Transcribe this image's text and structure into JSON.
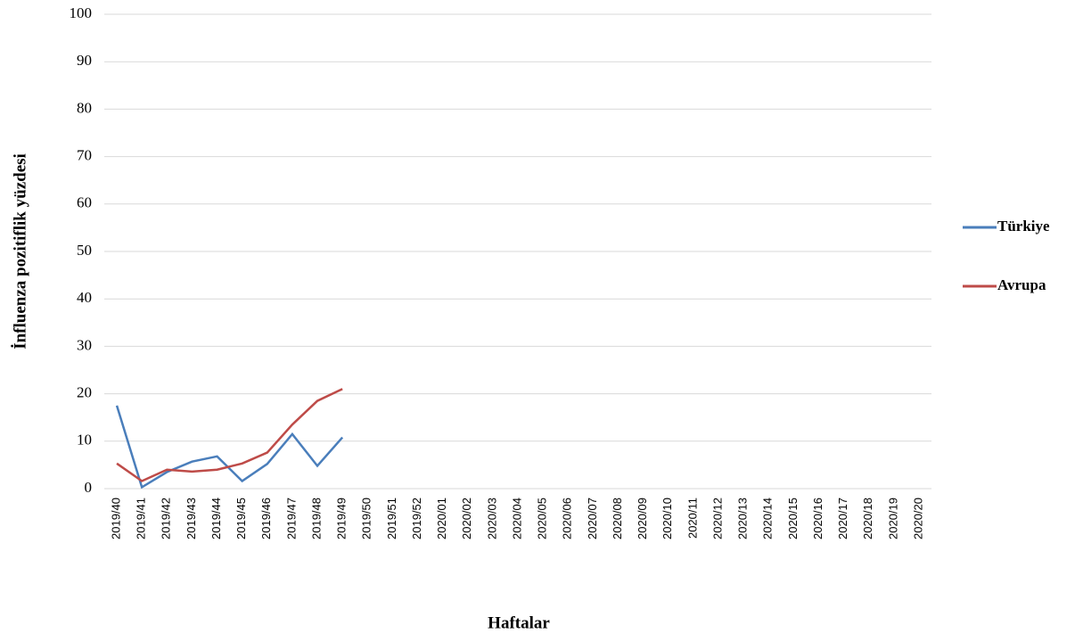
{
  "chart_data": {
    "type": "line",
    "x_label": "Haftalar",
    "y_label": "İnfluenza pozitiflik yüzdesi",
    "categories": [
      "2019/40",
      "2019/41",
      "2019/42",
      "2019/43",
      "2019/44",
      "2019/45",
      "2019/46",
      "2019/47",
      "2019/48",
      "2019/49",
      "2019/50",
      "2019/51",
      "2019/52",
      "2020/01",
      "2020/02",
      "2020/03",
      "2020/04",
      "2020/05",
      "2020/06",
      "2020/07",
      "2020/08",
      "2020/09",
      "2020/10",
      "2020/11",
      "2020/12",
      "2020/13",
      "2020/14",
      "2020/15",
      "2020/16",
      "2020/17",
      "2020/18",
      "2020/19",
      "2020/20"
    ],
    "series": [
      {
        "name": "Türkiye",
        "color": "#4a7ebb",
        "values": [
          17.5,
          0.3,
          3.5,
          5.7,
          6.8,
          1.6,
          5.2,
          11.5,
          4.8,
          10.8,
          null,
          null,
          null,
          null,
          null,
          null,
          null,
          null,
          null,
          null,
          null,
          null,
          null,
          null,
          null,
          null,
          null,
          null,
          null,
          null,
          null,
          null,
          null
        ]
      },
      {
        "name": "Avrupa",
        "color": "#be4b48",
        "values": [
          5.3,
          1.6,
          4.0,
          3.6,
          4.0,
          5.3,
          7.6,
          13.5,
          18.5,
          21.0,
          null,
          null,
          null,
          null,
          null,
          null,
          null,
          null,
          null,
          null,
          null,
          null,
          null,
          null,
          null,
          null,
          null,
          null,
          null,
          null,
          null,
          null,
          null
        ]
      }
    ],
    "ylim": [
      0,
      100
    ],
    "yticks": [
      0,
      10,
      20,
      30,
      40,
      50,
      60,
      70,
      80,
      90,
      100
    ],
    "grid": true,
    "legend": "right"
  }
}
